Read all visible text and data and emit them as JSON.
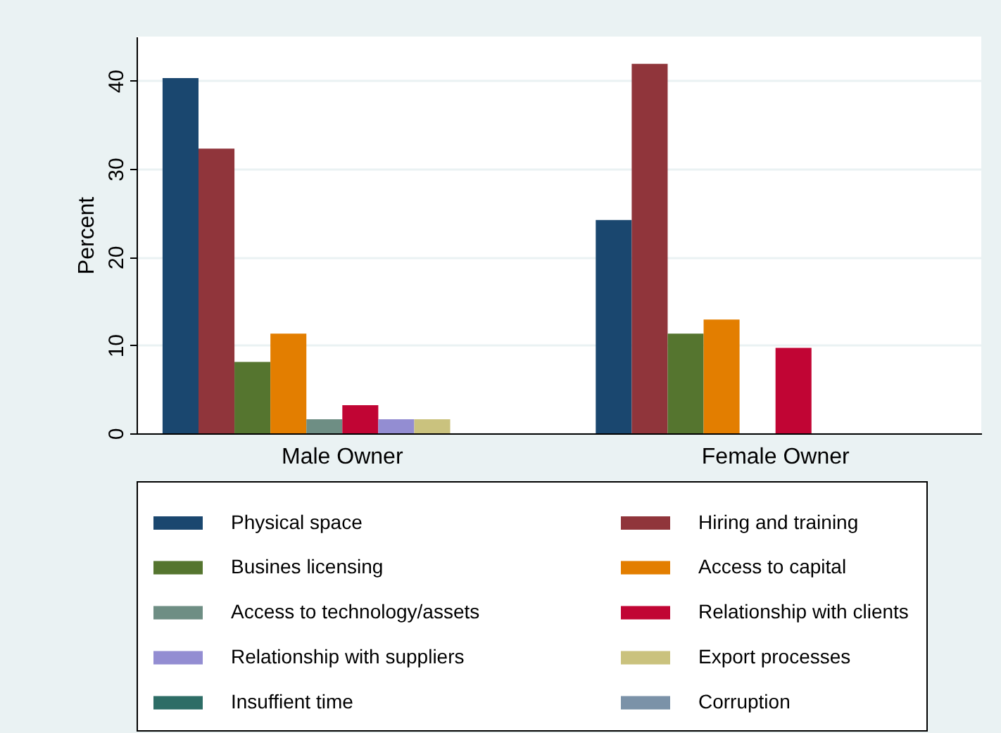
{
  "chart_data": {
    "type": "bar",
    "ylabel": "Percent",
    "categories": [
      "Male Owner",
      "Female Owner"
    ],
    "series": [
      {
        "name": "Physical space",
        "color": "#1a476f",
        "values": [
          40.3,
          24.2
        ]
      },
      {
        "name": "Hiring and training",
        "color": "#90353b",
        "values": [
          32.3,
          41.9
        ]
      },
      {
        "name": "Busines licensing",
        "color": "#55752f",
        "values": [
          8.1,
          11.3
        ]
      },
      {
        "name": "Access to capital",
        "color": "#e37e00",
        "values": [
          11.3,
          12.9
        ]
      },
      {
        "name": "Access to technology/assets",
        "color": "#6e8e84",
        "values": [
          1.6,
          0
        ]
      },
      {
        "name": "Relationship with clients",
        "color": "#c10534",
        "values": [
          3.2,
          9.7
        ]
      },
      {
        "name": "Relationship with suppliers",
        "color": "#938dd2",
        "values": [
          1.6,
          0
        ]
      },
      {
        "name": "Export processes",
        "color": "#cac27e",
        "values": [
          1.6,
          0
        ]
      },
      {
        "name": "Insuffient time",
        "color": "#2d6d66",
        "values": [
          0,
          0
        ]
      },
      {
        "name": "Corruption",
        "color": "#7b92a8",
        "values": [
          0,
          0
        ]
      }
    ],
    "ylim": [
      0,
      45
    ],
    "yticks": [
      0,
      10,
      20,
      30,
      40
    ],
    "grid": "y",
    "legend": "bottom"
  }
}
